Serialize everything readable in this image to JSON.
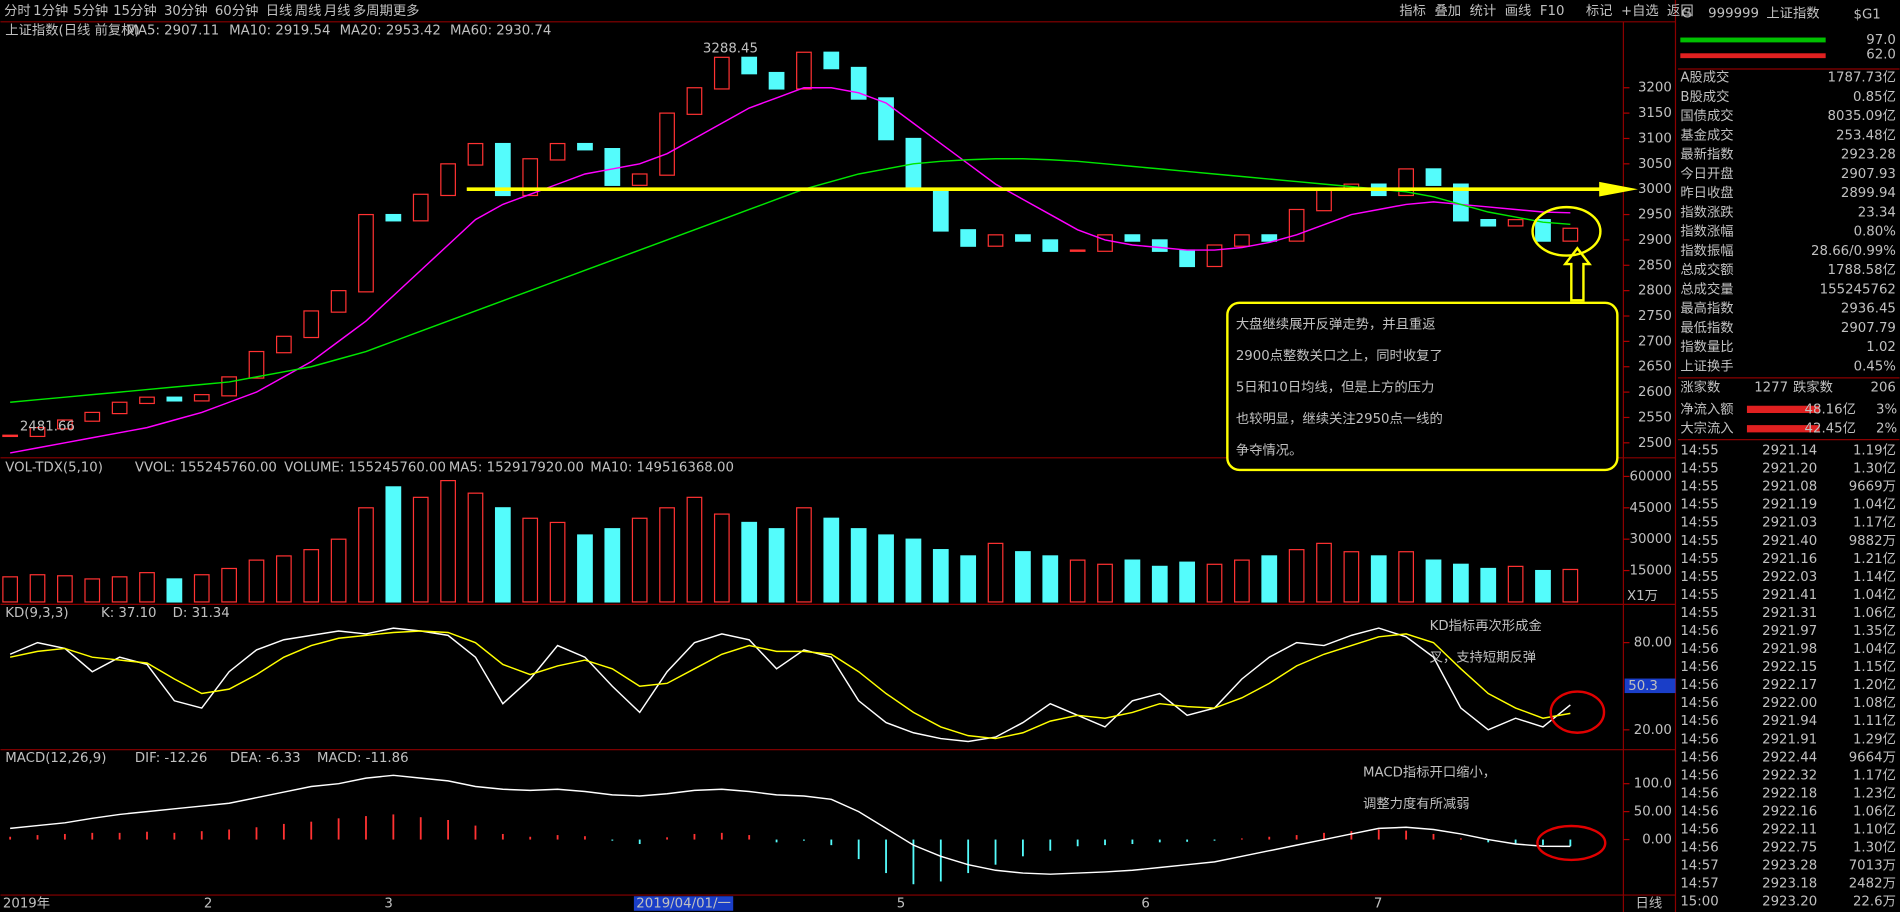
{
  "toolbar": {
    "periods": [
      "分时",
      "1分钟",
      "5分钟",
      "15分钟",
      "30分钟",
      "60分钟",
      "日线",
      "周线",
      "月线",
      "多周期",
      "更多"
    ],
    "tools": [
      "指标",
      "叠加",
      "统计",
      "画线",
      "F10",
      "标记",
      "+自选",
      "返回"
    ]
  },
  "quote": {
    "flag": "G",
    "code": "999999",
    "name": "上证指数",
    "tag": "$G1",
    "bar_labels": [
      "97.0",
      "62.0"
    ],
    "rows": [
      {
        "label": "A股成交",
        "value": "1787.73亿",
        "color": "#ffffff"
      },
      {
        "label": "B股成交",
        "value": "0.85亿",
        "color": "#ffffff"
      },
      {
        "label": "国债成交",
        "value": "8035.09亿",
        "color": "#ffffff"
      },
      {
        "label": "基金成交",
        "value": "253.48亿",
        "color": "#ffffff"
      },
      {
        "label": "最新指数",
        "value": "2923.28",
        "color": "#ff3c3c"
      },
      {
        "label": "今日开盘",
        "value": "2907.93",
        "color": "#ff3c3c"
      },
      {
        "label": "昨日收盘",
        "value": "2899.94",
        "color": "#ffffff"
      },
      {
        "label": "指数涨跌",
        "value": "23.34",
        "color": "#ff3c3c"
      },
      {
        "label": "指数涨幅",
        "value": "0.80%",
        "color": "#ff3c3c"
      },
      {
        "label": "指数振幅",
        "value": "28.66/0.99%",
        "color": "#ffffff"
      },
      {
        "label": "总成交额",
        "value": "1788.58亿",
        "color": "#ffff54"
      },
      {
        "label": "总成交量",
        "value": "155245762",
        "color": "#ffff54"
      },
      {
        "label": "最高指数",
        "value": "2936.45",
        "color": "#ff3c3c"
      },
      {
        "label": "最低指数",
        "value": "2907.79",
        "color": "#ff3c3c"
      },
      {
        "label": "指数量比",
        "value": "1.02",
        "color": "#ff3c3c"
      },
      {
        "label": "上证换手",
        "value": "0.45%",
        "color": "#ffffff"
      }
    ],
    "breadth": {
      "up_label": "涨家数",
      "up": "1277",
      "down_label": "跌家数",
      "down": "206"
    },
    "flows": [
      {
        "label": "净流入额",
        "value": "48.16亿",
        "pct": "3%"
      },
      {
        "label": "大宗流入",
        "value": "42.45亿",
        "pct": "2%"
      }
    ],
    "ticks": [
      [
        "14:55",
        "2921.14",
        "1.19亿"
      ],
      [
        "14:55",
        "2921.20",
        "1.30亿"
      ],
      [
        "14:55",
        "2921.08",
        "9669万"
      ],
      [
        "14:55",
        "2921.19",
        "1.04亿"
      ],
      [
        "14:55",
        "2921.03",
        "1.17亿"
      ],
      [
        "14:55",
        "2921.40",
        "9882万"
      ],
      [
        "14:55",
        "2921.16",
        "1.21亿"
      ],
      [
        "14:55",
        "2922.03",
        "1.14亿"
      ],
      [
        "14:55",
        "2921.41",
        "1.04亿"
      ],
      [
        "14:55",
        "2921.31",
        "1.06亿"
      ],
      [
        "14:56",
        "2921.97",
        "1.35亿"
      ],
      [
        "14:56",
        "2921.98",
        "1.04亿"
      ],
      [
        "14:56",
        "2922.15",
        "1.15亿"
      ],
      [
        "14:56",
        "2922.17",
        "1.20亿"
      ],
      [
        "14:56",
        "2922.00",
        "1.08亿"
      ],
      [
        "14:56",
        "2921.94",
        "1.11亿"
      ],
      [
        "14:56",
        "2921.91",
        "1.29亿"
      ],
      [
        "14:56",
        "2922.44",
        "9664万"
      ],
      [
        "14:56",
        "2922.32",
        "1.17亿"
      ],
      [
        "14:56",
        "2922.18",
        "1.23亿"
      ],
      [
        "14:56",
        "2922.16",
        "1.06亿"
      ],
      [
        "14:56",
        "2922.11",
        "1.10亿"
      ],
      [
        "14:56",
        "2922.75",
        "1.30亿"
      ],
      [
        "14:57",
        "2923.28",
        "7013万"
      ],
      [
        "14:57",
        "2923.18",
        "2482万"
      ],
      [
        "15:00",
        "2923.20",
        "22.6万"
      ]
    ]
  },
  "chart_data": [
    {
      "type": "candlestick",
      "title": "上证指数(日线 前复权)",
      "indicators": [
        {
          "label": "MA5: 2907.11",
          "color": "#ffffff"
        },
        {
          "label": "MA10: 2919.54",
          "color": "#ffff00"
        },
        {
          "label": "MA20: 2953.42",
          "color": "#ff00ff"
        },
        {
          "label": "MA60: 2930.74",
          "color": "#00e600"
        }
      ],
      "ylim": [
        2480,
        3330
      ],
      "yticks": [
        2500,
        2550,
        2600,
        2650,
        2700,
        2750,
        2800,
        2850,
        2900,
        2950,
        3000,
        3050,
        3100,
        3150,
        3200
      ],
      "high_label": "3288.45",
      "low_label": "2481.66",
      "support_level": 3000,
      "values": [
        2515,
        2530,
        2545,
        2560,
        2580,
        2590,
        2585,
        2595,
        2630,
        2680,
        2710,
        2760,
        2800,
        2950,
        2940,
        2990,
        3050,
        3090,
        2990,
        3060,
        3090,
        3080,
        3010,
        3030,
        3150,
        3200,
        3260,
        3230,
        3200,
        3270,
        3240,
        3180,
        3100,
        3000,
        2920,
        2890,
        2910,
        2900,
        2880,
        2880,
        2910,
        2900,
        2880,
        2850,
        2890,
        2910,
        2900,
        2960,
        3000,
        3010,
        2990,
        3040,
        3010,
        2940,
        2930,
        2940,
        2900,
        2923
      ],
      "series": [
        {
          "name": "MA20",
          "color": "#ff00ff",
          "values": [
            2480,
            2490,
            2500,
            2510,
            2520,
            2530,
            2545,
            2560,
            2580,
            2600,
            2630,
            2660,
            2700,
            2740,
            2790,
            2840,
            2890,
            2940,
            2970,
            2990,
            3010,
            3030,
            3040,
            3050,
            3070,
            3100,
            3130,
            3160,
            3180,
            3200,
            3200,
            3190,
            3170,
            3130,
            3090,
            3050,
            3010,
            2980,
            2950,
            2920,
            2900,
            2890,
            2885,
            2880,
            2880,
            2885,
            2895,
            2910,
            2930,
            2950,
            2960,
            2970,
            2975,
            2970,
            2965,
            2960,
            2955,
            2953.42
          ]
        },
        {
          "name": "MA60",
          "color": "#00e600",
          "values": [
            2580,
            2585,
            2590,
            2595,
            2600,
            2605,
            2610,
            2615,
            2620,
            2630,
            2640,
            2650,
            2665,
            2680,
            2700,
            2720,
            2740,
            2760,
            2780,
            2800,
            2820,
            2840,
            2860,
            2880,
            2900,
            2920,
            2940,
            2960,
            2980,
            3000,
            3015,
            3030,
            3040,
            3050,
            3055,
            3058,
            3060,
            3060,
            3058,
            3055,
            3050,
            3045,
            3040,
            3035,
            3030,
            3025,
            3020,
            3015,
            3010,
            3005,
            3000,
            2995,
            2985,
            2970,
            2955,
            2945,
            2935,
            2930.74
          ]
        }
      ]
    },
    {
      "type": "bar",
      "title": "VOL-TDX(5,10)",
      "indicators": [
        {
          "label": "VVOL: 155245760.00",
          "color": "#ffffff"
        },
        {
          "label": "VOLUME: 155245760.00",
          "color": "#ffff00"
        },
        {
          "label": "MA5: 152917920.00",
          "color": "#ffff00"
        },
        {
          "label": "MA10: 149516368.00",
          "color": "#ff00ff"
        }
      ],
      "unit": "X1万",
      "ylim": [
        0,
        66000
      ],
      "yticks": [
        15000,
        30000,
        45000,
        60000
      ],
      "values": [
        12000,
        13000,
        12500,
        11000,
        12000,
        14000,
        11000,
        13000,
        16000,
        20000,
        22000,
        25000,
        30000,
        45000,
        55000,
        50000,
        58000,
        52000,
        45000,
        40000,
        38000,
        32000,
        35000,
        40000,
        45000,
        50000,
        42000,
        38000,
        35000,
        45000,
        40000,
        35000,
        32000,
        30000,
        25000,
        22000,
        28000,
        24000,
        22000,
        20000,
        18000,
        20000,
        17000,
        19000,
        18000,
        20000,
        22000,
        25000,
        28000,
        24000,
        22000,
        24000,
        20000,
        18000,
        16000,
        17000,
        15000,
        15525
      ]
    },
    {
      "type": "line",
      "title": "KD(9,3,3)",
      "ylim": [
        8,
        98
      ],
      "yticks": [
        {
          "value": 20,
          "label": "20.00"
        },
        {
          "value": 80,
          "label": "80.00"
        }
      ],
      "cursor_value": 50.3,
      "series": [
        {
          "name": "K: 37.10",
          "color": "#ffffff",
          "values": [
            72,
            80,
            76,
            60,
            70,
            65,
            40,
            35,
            60,
            75,
            82,
            85,
            88,
            86,
            90,
            88,
            85,
            70,
            38,
            55,
            78,
            70,
            50,
            32,
            60,
            80,
            86,
            82,
            62,
            75,
            70,
            40,
            25,
            18,
            14,
            12,
            15,
            25,
            38,
            30,
            22,
            40,
            45,
            30,
            35,
            55,
            70,
            80,
            78,
            85,
            90,
            84,
            70,
            35,
            20,
            28,
            22,
            37.1
          ]
        },
        {
          "name": "D: 31.34",
          "color": "#ffff00",
          "values": [
            70,
            74,
            76,
            70,
            68,
            66,
            55,
            45,
            48,
            58,
            70,
            78,
            83,
            85,
            87,
            88,
            87,
            80,
            65,
            58,
            64,
            68,
            62,
            50,
            52,
            62,
            72,
            78,
            74,
            74,
            72,
            60,
            45,
            32,
            22,
            16,
            14,
            18,
            26,
            30,
            28,
            32,
            38,
            36,
            35,
            42,
            52,
            64,
            72,
            78,
            84,
            86,
            80,
            62,
            45,
            35,
            28,
            31.34
          ]
        }
      ]
    },
    {
      "type": "macd",
      "title": "MACD(12,26,9)",
      "indicators": [
        {
          "label": "DIF: -12.26",
          "color": "#ffffff"
        },
        {
          "label": "DEA: -6.33",
          "color": "#ffff00"
        },
        {
          "label": "MACD: -11.86",
          "color": "#ff00ff"
        }
      ],
      "ylim": [
        -95,
        150
      ],
      "yticks": [
        {
          "value": 0,
          "label": "0.00"
        },
        {
          "value": 50,
          "label": "50.00"
        },
        {
          "value": 100,
          "label": "100.0"
        }
      ],
      "values": [
        5,
        8,
        10,
        12,
        12,
        14,
        12,
        15,
        18,
        22,
        28,
        32,
        38,
        42,
        45,
        40,
        35,
        25,
        10,
        5,
        8,
        6,
        -2,
        -8,
        4,
        10,
        12,
        8,
        -5,
        -2,
        -10,
        -35,
        -60,
        -80,
        -75,
        -60,
        -45,
        -30,
        -20,
        -12,
        -10,
        -8,
        -5,
        -4,
        -2,
        2,
        5,
        8,
        12,
        15,
        18,
        16,
        10,
        2,
        -5,
        -8,
        -10,
        -11.86
      ],
      "series": [
        {
          "name": "DIF",
          "color": "#ffffff",
          "values": [
            20,
            25,
            30,
            38,
            45,
            50,
            55,
            60,
            65,
            75,
            85,
            95,
            100,
            110,
            115,
            110,
            105,
            95,
            90,
            88,
            90,
            86,
            80,
            78,
            82,
            88,
            90,
            86,
            80,
            78,
            72,
            50,
            20,
            -10,
            -30,
            -45,
            -55,
            -60,
            -62,
            -60,
            -58,
            -55,
            -50,
            -45,
            -40,
            -30,
            -20,
            -10,
            0,
            10,
            20,
            22,
            18,
            10,
            0,
            -8,
            -12,
            -12.26
          ]
        }
      ]
    }
  ],
  "date_axis": {
    "labels": [
      "2019年",
      "2",
      "3",
      "2019/04/01/一",
      "5",
      "6",
      "7"
    ],
    "period": "日线"
  },
  "annotations": {
    "summary": [
      "大盘继续展开反弹走势，并且重返",
      "2900点整数关口之上，同时收复了",
      "5日和10日均线，但是上方的压力",
      "也较明显，继续关注2950点一线的",
      "争夺情况。"
    ],
    "kd": [
      "KD指标再次形成金",
      "叉，支持短期反弹"
    ],
    "macd": [
      "MACD指标开口缩小，",
      "调整力度有所减弱"
    ]
  }
}
